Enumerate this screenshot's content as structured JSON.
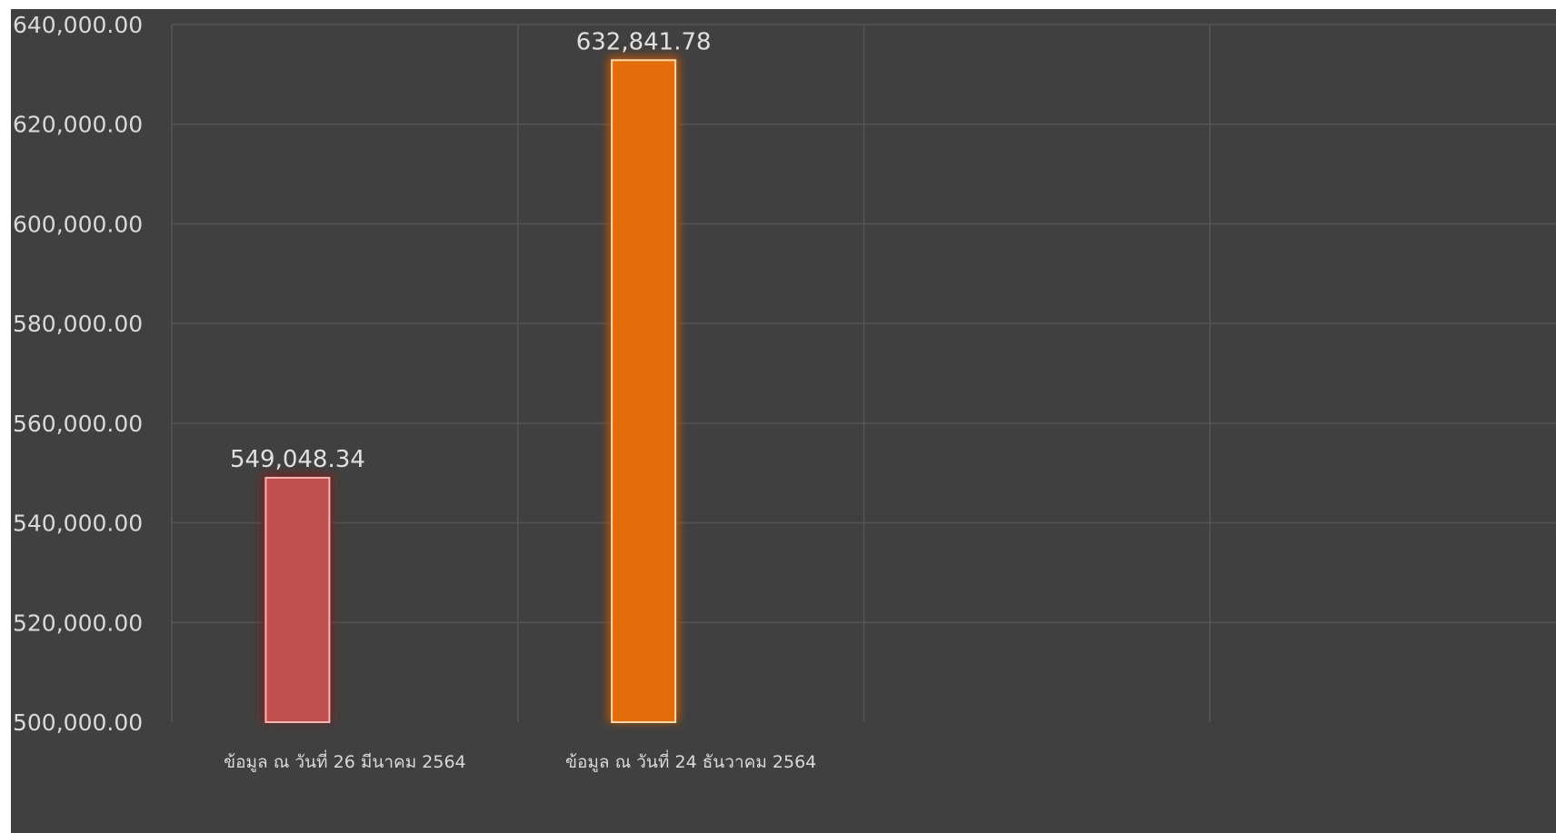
{
  "chart_data": {
    "type": "bar",
    "categories": [
      "ข้อมูล ณ วันที่ 26 มีนาคม 2564",
      "ข้อมูล ณ วันที่ 24 ธันวาคม 2564"
    ],
    "values": [
      549048.34,
      632841.78
    ],
    "data_labels": [
      "549,048.34",
      "632,841.78"
    ],
    "ylim": [
      500000,
      640000
    ],
    "yticks": [
      500000,
      520000,
      540000,
      560000,
      580000,
      600000,
      620000,
      640000
    ],
    "ytick_labels": [
      "500,000.00",
      "520,000.00",
      "540,000.00",
      "560,000.00",
      "580,000.00",
      "600,000.00",
      "620,000.00",
      "640,000.00"
    ],
    "category_slots": 4,
    "grid": true,
    "legend": "none",
    "title": "",
    "xlabel": "",
    "ylabel": "",
    "colors": {
      "background": "#404040",
      "grid": "#555555",
      "bars": [
        "#c0504d",
        "#e46c0a"
      ],
      "bar_borders": [
        "#f4b6b4",
        "#fdd9a8"
      ],
      "glows": [
        "#7a2020",
        "#b5520a"
      ]
    }
  }
}
